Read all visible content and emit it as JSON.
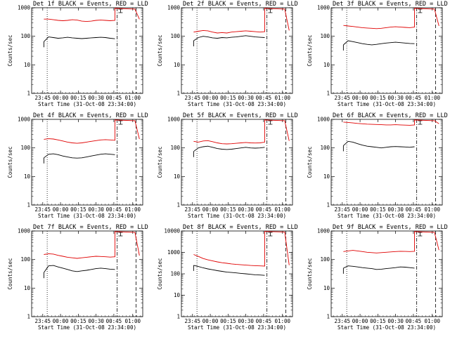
{
  "figure": {
    "xlabel": "Start Time (31-Oct-08 23:34:00)",
    "ylabel": "Counts/sec",
    "x_tick_labels": [
      "23:45",
      "00:00",
      "00:15",
      "00:30",
      "00:45",
      "01:00"
    ],
    "y_tick_labels": [
      "1",
      "10",
      "100",
      "1000"
    ],
    "y_tick_labels_panel8": [
      "1",
      "10",
      "100",
      "1000",
      "10000"
    ],
    "colors": {
      "events": "#000000",
      "lld": "#e00000",
      "background": "#ffffff"
    }
  },
  "chart_data": [
    {
      "type": "line",
      "title": "Det 1f BLACK = Events, RED = LLD",
      "xlabel": "Start Time (31-Oct-08 23:34:00)",
      "ylabel": "Counts/sec",
      "yscale": "log",
      "ylim": [
        1,
        1000
      ],
      "x_tick_labels": [
        "23:45",
        "00:00",
        "00:15",
        "00:30",
        "00:45",
        "01:00"
      ],
      "y_tick_labels": [
        "1",
        "10",
        "100",
        "1000"
      ],
      "series": [
        {
          "name": "Events",
          "color": "#000000",
          "values": [
            65,
            95,
            90,
            85,
            88,
            92,
            88,
            85,
            83,
            85,
            88,
            90,
            92,
            90,
            85,
            82
          ]
        },
        {
          "name": "LLD",
          "color": "#e00000",
          "values": [
            400,
            400,
            380,
            360,
            350,
            360,
            380,
            370,
            340,
            330,
            340,
            360,
            370,
            360,
            350,
            360
          ]
        }
      ]
    },
    {
      "type": "line",
      "title": "Det 2f BLACK = Events, RED = LLD",
      "xlabel": "Start Time (31-Oct-08 23:34:00)",
      "ylabel": "Counts/sec",
      "yscale": "log",
      "ylim": [
        1,
        1000
      ],
      "x_tick_labels": [
        "23:45",
        "00:00",
        "00:15",
        "00:30",
        "00:45",
        "01:00"
      ],
      "y_tick_labels": [
        "1",
        "10",
        "100",
        "1000"
      ],
      "series": [
        {
          "name": "Events",
          "color": "#000000",
          "values": [
            70,
            90,
            100,
            95,
            88,
            85,
            90,
            88,
            92,
            95,
            100,
            105,
            100,
            95,
            92,
            90
          ]
        },
        {
          "name": "LLD",
          "color": "#e00000",
          "values": [
            140,
            150,
            160,
            155,
            140,
            130,
            135,
            130,
            140,
            145,
            150,
            155,
            150,
            145,
            140,
            145
          ]
        }
      ]
    },
    {
      "type": "line",
      "title": "Det 3f BLACK = Events, RED = LLD",
      "xlabel": "Start Time (31-Oct-08 23:34:00)",
      "ylabel": "Counts/sec",
      "yscale": "log",
      "ylim": [
        1,
        1000
      ],
      "x_tick_labels": [
        "23:45",
        "00:00",
        "00:15",
        "00:30",
        "00:45",
        "01:00"
      ],
      "y_tick_labels": [
        "1",
        "10",
        "100",
        "1000"
      ],
      "series": [
        {
          "name": "Events",
          "color": "#000000",
          "values": [
            50,
            70,
            65,
            60,
            55,
            52,
            50,
            52,
            55,
            58,
            60,
            62,
            60,
            58,
            56,
            55
          ]
        },
        {
          "name": "LLD",
          "color": "#e00000",
          "values": [
            240,
            230,
            220,
            210,
            200,
            195,
            190,
            185,
            190,
            200,
            210,
            215,
            210,
            205,
            200,
            210
          ]
        }
      ]
    },
    {
      "type": "line",
      "title": "Det 4f BLACK = Events, RED = LLD",
      "xlabel": "Start Time (31-Oct-08 23:34:00)",
      "ylabel": "Counts/sec",
      "yscale": "log",
      "ylim": [
        1,
        1000
      ],
      "x_tick_labels": [
        "23:45",
        "00:00",
        "00:15",
        "00:30",
        "00:45",
        "01:00"
      ],
      "y_tick_labels": [
        "1",
        "10",
        "100",
        "1000"
      ],
      "series": [
        {
          "name": "Events",
          "color": "#000000",
          "values": [
            45,
            60,
            62,
            58,
            52,
            48,
            45,
            44,
            45,
            48,
            52,
            56,
            60,
            62,
            60,
            58
          ]
        },
        {
          "name": "LLD",
          "color": "#e00000",
          "values": [
            200,
            210,
            205,
            190,
            175,
            160,
            150,
            145,
            150,
            160,
            170,
            180,
            190,
            195,
            190,
            185
          ]
        }
      ]
    },
    {
      "type": "line",
      "title": "Det 5f BLACK = Events, RED = LLD",
      "xlabel": "Start Time (31-Oct-08 23:34:00)",
      "ylabel": "Counts/sec",
      "yscale": "log",
      "ylim": [
        1,
        1000
      ],
      "x_tick_labels": [
        "23:45",
        "00:00",
        "00:15",
        "00:30",
        "00:45",
        "01:00"
      ],
      "y_tick_labels": [
        "1",
        "10",
        "100",
        "1000"
      ],
      "series": [
        {
          "name": "Events",
          "color": "#000000",
          "values": [
            75,
            100,
            110,
            115,
            105,
            95,
            90,
            88,
            90,
            95,
            100,
            105,
            100,
            98,
            100,
            105
          ]
        },
        {
          "name": "LLD",
          "color": "#e00000",
          "values": [
            170,
            160,
            175,
            180,
            165,
            150,
            140,
            138,
            140,
            145,
            150,
            155,
            150,
            148,
            150,
            160
          ]
        }
      ]
    },
    {
      "type": "line",
      "title": "Det 6f BLACK = Events, RED = LLD",
      "xlabel": "Start Time (31-Oct-08 23:34:00)",
      "ylabel": "Counts/sec",
      "yscale": "log",
      "ylim": [
        1,
        1000
      ],
      "x_tick_labels": [
        "23:45",
        "00:00",
        "00:15",
        "00:30",
        "00:45",
        "01:00"
      ],
      "y_tick_labels": [
        "1",
        "10",
        "100",
        "1000"
      ],
      "series": [
        {
          "name": "Events",
          "color": "#000000",
          "values": [
            120,
            170,
            160,
            140,
            125,
            115,
            110,
            105,
            100,
            105,
            110,
            112,
            110,
            108,
            105,
            110
          ]
        },
        {
          "name": "LLD",
          "color": "#e00000",
          "values": [
            800,
            780,
            750,
            720,
            700,
            680,
            670,
            660,
            650,
            640,
            640,
            650,
            640,
            630,
            620,
            640
          ]
        }
      ]
    },
    {
      "type": "line",
      "title": "Det 7f BLACK = Events, RED = LLD",
      "xlabel": "Start Time (31-Oct-08 23:34:00)",
      "ylabel": "Counts/sec",
      "yscale": "log",
      "ylim": [
        1,
        1000
      ],
      "x_tick_labels": [
        "23:45",
        "00:00",
        "00:15",
        "00:30",
        "00:45",
        "01:00"
      ],
      "y_tick_labels": [
        "1",
        "10",
        "100",
        "1000"
      ],
      "series": [
        {
          "name": "Events",
          "color": "#000000",
          "values": [
            35,
            60,
            62,
            55,
            50,
            45,
            40,
            38,
            40,
            42,
            45,
            48,
            50,
            48,
            46,
            45
          ]
        },
        {
          "name": "LLD",
          "color": "#e00000",
          "values": [
            150,
            160,
            155,
            140,
            130,
            120,
            115,
            110,
            115,
            120,
            125,
            130,
            128,
            125,
            122,
            125
          ]
        }
      ]
    },
    {
      "type": "line",
      "title": "Det 8f BLACK = Events, RED = LLD",
      "xlabel": "Start Time (31-Oct-08 23:34:00)",
      "ylabel": "Counts/sec",
      "yscale": "log",
      "ylim": [
        1,
        10000
      ],
      "x_tick_labels": [
        "23:45",
        "00:00",
        "00:15",
        "00:30",
        "00:45",
        "01:00"
      ],
      "y_tick_labels": [
        "1",
        "10",
        "100",
        "1000",
        "10000"
      ],
      "series": [
        {
          "name": "Events",
          "color": "#000000",
          "values": [
            250,
            220,
            190,
            170,
            155,
            140,
            130,
            120,
            115,
            110,
            105,
            100,
            95,
            90,
            88,
            85
          ]
        },
        {
          "name": "LLD",
          "color": "#e00000",
          "values": [
            800,
            650,
            520,
            450,
            400,
            360,
            330,
            310,
            290,
            275,
            265,
            255,
            245,
            240,
            235,
            230
          ]
        }
      ]
    },
    {
      "type": "line",
      "title": "Det 9f BLACK = Events, RED = LLD",
      "xlabel": "Start Time (31-Oct-08 23:34:00)",
      "ylabel": "Counts/sec",
      "yscale": "log",
      "ylim": [
        1,
        1000
      ],
      "x_tick_labels": [
        "23:45",
        "00:00",
        "00:15",
        "00:30",
        "00:45",
        "01:00"
      ],
      "y_tick_labels": [
        "1",
        "10",
        "100",
        "1000"
      ],
      "series": [
        {
          "name": "Events",
          "color": "#000000",
          "values": [
            50,
            60,
            58,
            55,
            52,
            50,
            48,
            45,
            46,
            48,
            50,
            52,
            55,
            54,
            52,
            50
          ]
        },
        {
          "name": "LLD",
          "color": "#e00000",
          "values": [
            190,
            200,
            210,
            200,
            190,
            180,
            175,
            170,
            175,
            180,
            185,
            190,
            195,
            192,
            190,
            195
          ]
        }
      ]
    }
  ]
}
